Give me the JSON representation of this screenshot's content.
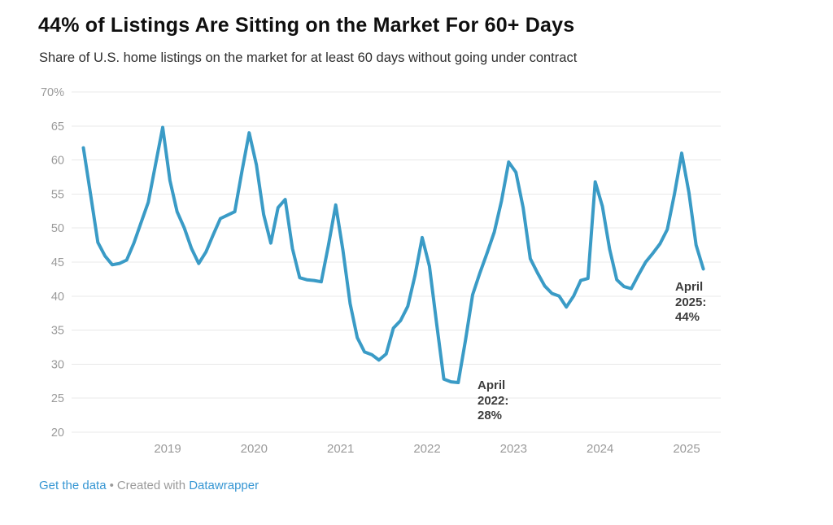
{
  "header": {
    "title": "44% of Listings Are Sitting on the Market For 60+ Days",
    "subtitle": "Share of U.S. home listings on the market for at least 60 days without going under contract"
  },
  "chart_data": {
    "type": "line",
    "title": "44% of Listings Are Sitting on the Market For 60+ Days",
    "subtitle": "Share of U.S. home listings on the market for at least 60 days without going under contract",
    "x_start_month": "2018-02",
    "x_end_month": "2025-04",
    "x_tick_labels": [
      "2019",
      "2020",
      "2021",
      "2022",
      "2023",
      "2024",
      "2025"
    ],
    "x_tick_years": [
      2019,
      2020,
      2021,
      2022,
      2023,
      2024,
      2025
    ],
    "y_ticks": [
      70,
      65,
      60,
      55,
      50,
      45,
      40,
      35,
      30,
      25,
      20
    ],
    "y_top_tick_label": "70%",
    "ylim": [
      20,
      70
    ],
    "grid": true,
    "legend_position": "none",
    "series": [
      {
        "name": "Share of listings on market 60+ days",
        "color": "#3a9bc6",
        "frequency": "monthly",
        "values": [
          61.8,
          54.9,
          47.9,
          45.9,
          44.6,
          44.8,
          45.3,
          47.8,
          50.8,
          53.8,
          59.3,
          64.8,
          57.0,
          52.4,
          50.0,
          47.0,
          44.8,
          46.5,
          49.0,
          51.4,
          51.9,
          52.4,
          58.4,
          64.0,
          59.3,
          52.0,
          47.8,
          53.0,
          54.2,
          47.0,
          42.7,
          42.4,
          42.3,
          42.1,
          47.5,
          53.4,
          46.8,
          38.9,
          33.9,
          31.8,
          31.4,
          30.6,
          31.5,
          35.3,
          36.4,
          38.5,
          43.0,
          48.6,
          44.4,
          36.0,
          27.8,
          27.4,
          27.3,
          33.5,
          40.2,
          43.4,
          46.3,
          49.4,
          54.0,
          59.7,
          58.2,
          53.0,
          45.5,
          43.4,
          41.5,
          40.4,
          40.0,
          38.4,
          40.0,
          42.3,
          42.6,
          56.8,
          53.2,
          46.9,
          42.4,
          41.4,
          41.1,
          43.1,
          45.0,
          46.3,
          47.7,
          49.8,
          55.0,
          61.0,
          55.2,
          47.5,
          44.0
        ]
      }
    ],
    "annotations": [
      {
        "lines": [
          "April",
          "2022:",
          "28%"
        ],
        "anchor_month": "2022-04",
        "value": 28
      },
      {
        "lines": [
          "April",
          "2025:",
          "44%"
        ],
        "anchor_month": "2025-04",
        "value": 44
      }
    ]
  },
  "colors": {
    "line": "#3a9bc6",
    "grid": "#e8e8e8",
    "axis_text": "#9a9a9a",
    "annotation_text": "#3d3d3d",
    "title_text": "#0f0f0f",
    "subtitle_text": "#2e2e2e",
    "link": "#3696d3"
  },
  "footer": {
    "link1": "Get the data",
    "separator": "•",
    "credit": "Created with",
    "link2": "Datawrapper"
  }
}
